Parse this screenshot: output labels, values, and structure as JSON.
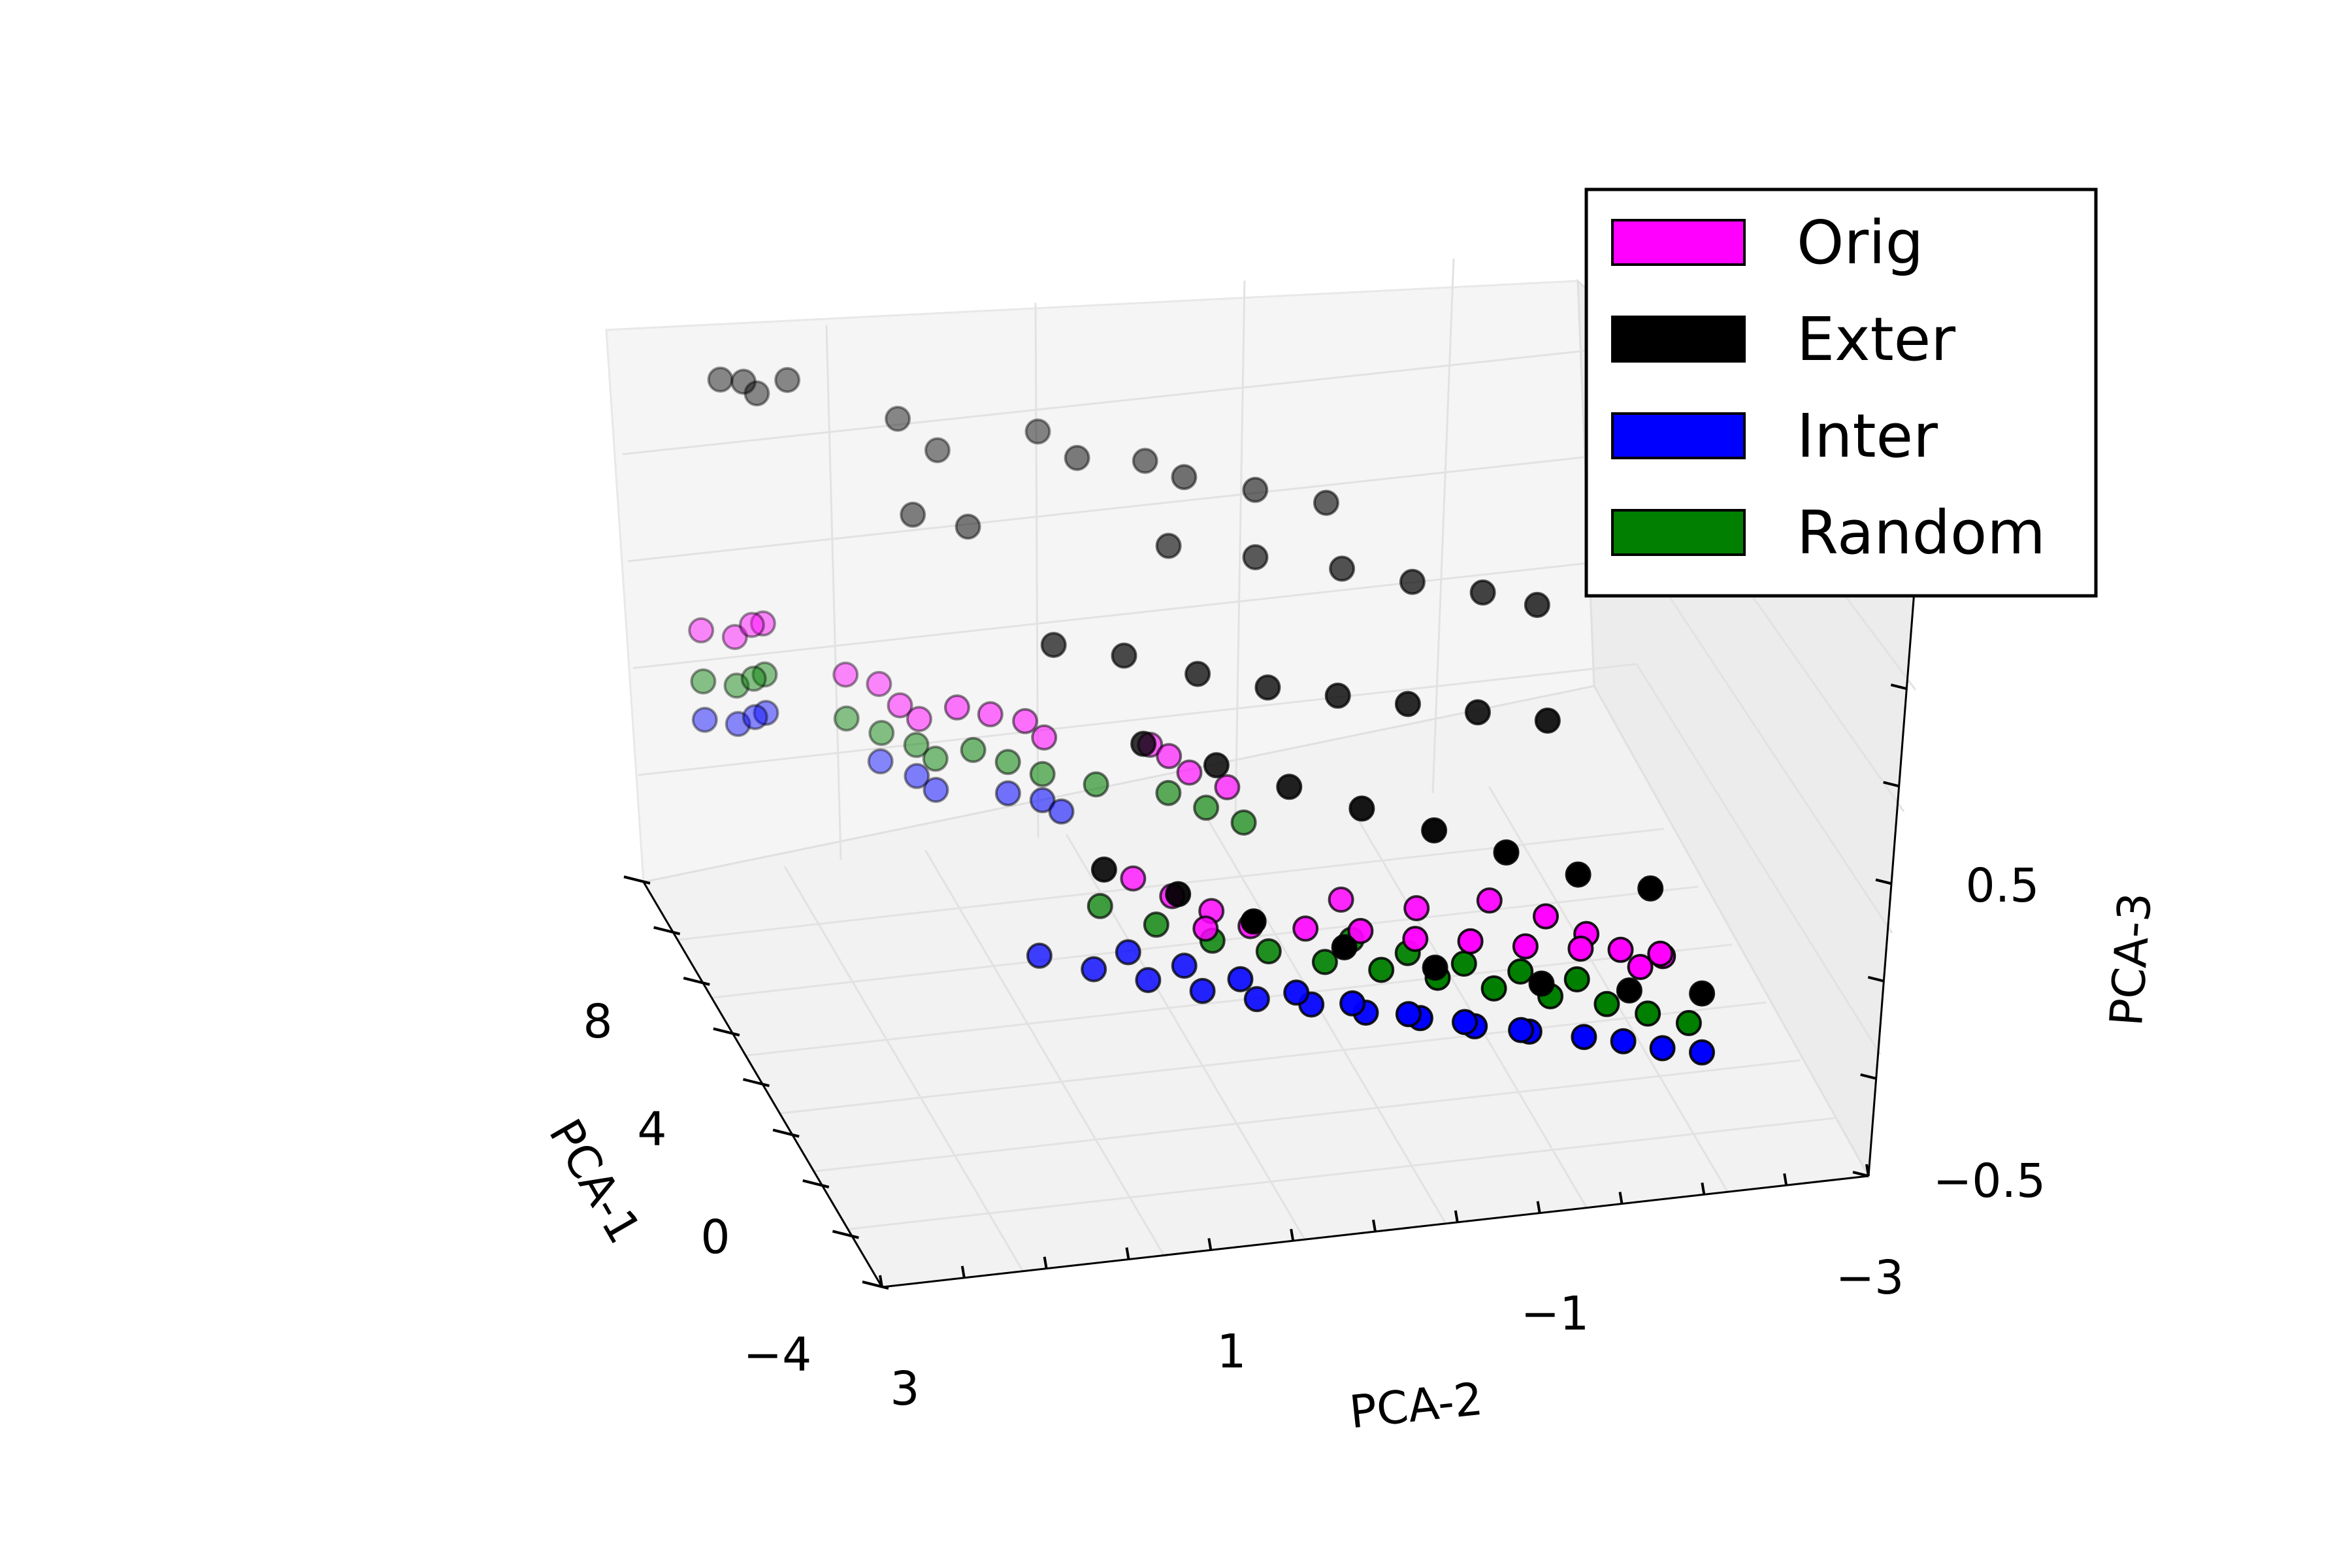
{
  "chart_data": {
    "type": "scatter",
    "projection": "3d",
    "grid": true,
    "legend_position": "top-right",
    "axes": {
      "x": {
        "label": "PCA-1",
        "ticks": [
          8,
          4,
          0,
          -4
        ],
        "tick_labels": [
          "8",
          "4",
          "0",
          "−4"
        ]
      },
      "y": {
        "label": "PCA-2",
        "ticks": [
          3,
          1,
          -1,
          -3
        ],
        "tick_labels": [
          "3",
          "1",
          "−1",
          "−3"
        ]
      },
      "z": {
        "label": "PCA-3",
        "ticks": [
          0.5,
          -0.5
        ],
        "tick_labels": [
          "0.5",
          "−0.5"
        ]
      }
    },
    "series": [
      {
        "name": "Orig",
        "color": "#ff00ff",
        "points": [
          [
            9.6,
            2.8,
            0.25
          ],
          [
            9.5,
            2.6,
            0.22
          ],
          [
            9.7,
            2.4,
            0.24
          ],
          [
            9.4,
            2.5,
            0.27
          ],
          [
            8.6,
            2.0,
            0.12
          ],
          [
            8.5,
            1.8,
            0.08
          ],
          [
            8.2,
            1.7,
            0.02
          ],
          [
            8.0,
            1.6,
            -0.02
          ],
          [
            7.6,
            1.4,
            0.05
          ],
          [
            7.5,
            1.2,
            0.02
          ],
          [
            7.3,
            1.0,
            0.0
          ],
          [
            7.1,
            0.9,
            -0.05
          ],
          [
            6.4,
            0.3,
            -0.05
          ],
          [
            6.2,
            0.2,
            -0.08
          ],
          [
            5.9,
            0.1,
            -0.12
          ],
          [
            5.5,
            -0.1,
            -0.15
          ],
          [
            4.5,
            0.6,
            -0.35
          ],
          [
            4.0,
            0.4,
            -0.38
          ],
          [
            3.5,
            0.2,
            -0.4
          ],
          [
            3.0,
            0.0,
            -0.42
          ],
          [
            2.5,
            -0.3,
            -0.4
          ],
          [
            2.0,
            -0.6,
            -0.38
          ],
          [
            1.5,
            -0.9,
            -0.38
          ],
          [
            1.0,
            -1.2,
            -0.36
          ],
          [
            0.5,
            -1.5,
            -0.35
          ],
          [
            0.0,
            -1.8,
            -0.33
          ],
          [
            -0.5,
            -2.0,
            -0.3
          ],
          [
            -1.0,
            -2.2,
            -0.28
          ],
          [
            1.8,
            -1.4,
            -0.3
          ],
          [
            1.2,
            -1.7,
            -0.32
          ],
          [
            0.6,
            -1.9,
            -0.34
          ],
          [
            2.4,
            -1.0,
            -0.36
          ],
          [
            3.2,
            -0.6,
            -0.38
          ],
          [
            -0.3,
            -2.3,
            -0.36
          ],
          [
            -0.8,
            -2.1,
            -0.34
          ],
          [
            2.9,
            0.3,
            -0.4
          ]
        ]
      },
      {
        "name": "Exter",
        "color": "#000000",
        "points": [
          [
            9.8,
            2.6,
            1.2
          ],
          [
            9.6,
            2.4,
            1.15
          ],
          [
            9.7,
            2.2,
            1.18
          ],
          [
            9.4,
            2.5,
            1.22
          ],
          [
            9.0,
            1.6,
            1.05
          ],
          [
            8.6,
            1.4,
            0.95
          ],
          [
            8.4,
            0.8,
            1.0
          ],
          [
            8.0,
            0.6,
            0.92
          ],
          [
            7.8,
            0.2,
            0.9
          ],
          [
            7.4,
            0.0,
            0.86
          ],
          [
            7.0,
            -0.4,
            0.82
          ],
          [
            6.6,
            -0.8,
            0.78
          ],
          [
            8.2,
            1.6,
            0.75
          ],
          [
            7.8,
            1.3,
            0.72
          ],
          [
            6.4,
            0.2,
            0.7
          ],
          [
            6.0,
            -0.3,
            0.66
          ],
          [
            5.6,
            -0.8,
            0.62
          ],
          [
            5.2,
            -1.2,
            0.58
          ],
          [
            4.8,
            -1.6,
            0.55
          ],
          [
            4.4,
            -1.9,
            0.52
          ],
          [
            5.6,
            1.0,
            0.45
          ],
          [
            5.2,
            0.6,
            0.42
          ],
          [
            4.6,
            0.2,
            0.38
          ],
          [
            4.2,
            -0.2,
            0.34
          ],
          [
            3.8,
            -0.6,
            0.32
          ],
          [
            3.4,
            -1.0,
            0.3
          ],
          [
            3.0,
            -1.4,
            0.28
          ],
          [
            2.6,
            -1.8,
            0.26
          ],
          [
            4.0,
            0.6,
            0.2
          ],
          [
            3.4,
            0.2,
            0.15
          ],
          [
            2.8,
            -0.2,
            0.1
          ],
          [
            2.2,
            -0.6,
            0.05
          ],
          [
            1.6,
            -1.0,
            0.0
          ],
          [
            1.0,
            -1.4,
            -0.05
          ],
          [
            0.4,
            -1.8,
            -0.1
          ],
          [
            -0.2,
            -2.2,
            -0.12
          ],
          [
            2.5,
            1.0,
            -0.1
          ],
          [
            1.8,
            0.6,
            -0.15
          ],
          [
            1.0,
            0.2,
            -0.2
          ],
          [
            0.2,
            -0.3,
            -0.25
          ],
          [
            -0.6,
            -0.8,
            -0.28
          ],
          [
            -1.4,
            -1.4,
            -0.3
          ],
          [
            -2.0,
            -1.9,
            -0.3
          ],
          [
            -2.6,
            -2.3,
            -0.28
          ]
        ]
      },
      {
        "name": "Inter",
        "color": "#0000ff",
        "points": [
          [
            9.6,
            2.8,
            -0.1
          ],
          [
            9.5,
            2.6,
            -0.12
          ],
          [
            9.7,
            2.4,
            -0.11
          ],
          [
            9.4,
            2.5,
            -0.09
          ],
          [
            8.5,
            1.8,
            -0.22
          ],
          [
            8.2,
            1.6,
            -0.26
          ],
          [
            8.0,
            1.5,
            -0.3
          ],
          [
            7.4,
            1.1,
            -0.28
          ],
          [
            7.2,
            0.9,
            -0.3
          ],
          [
            7.0,
            0.8,
            -0.33
          ],
          [
            4.5,
            1.2,
            -0.6
          ],
          [
            4.0,
            0.9,
            -0.62
          ],
          [
            3.5,
            0.6,
            -0.63
          ],
          [
            3.0,
            0.3,
            -0.64
          ],
          [
            2.5,
            0.0,
            -0.64
          ],
          [
            2.0,
            -0.3,
            -0.63
          ],
          [
            1.5,
            -0.6,
            -0.63
          ],
          [
            1.0,
            -0.9,
            -0.62
          ],
          [
            0.5,
            -1.2,
            -0.62
          ],
          [
            0.0,
            -1.5,
            -0.61
          ],
          [
            -0.5,
            -1.8,
            -0.6
          ],
          [
            -1.0,
            -2.0,
            -0.58
          ],
          [
            -1.5,
            -2.2,
            -0.57
          ],
          [
            -2.0,
            -2.4,
            -0.55
          ],
          [
            3.8,
            0.7,
            -0.55
          ],
          [
            3.2,
            0.4,
            -0.56
          ],
          [
            2.6,
            0.1,
            -0.57
          ],
          [
            2.0,
            -0.2,
            -0.58
          ],
          [
            1.4,
            -0.5,
            -0.58
          ],
          [
            0.8,
            -0.8,
            -0.58
          ],
          [
            0.2,
            -1.1,
            -0.57
          ],
          [
            -0.4,
            -1.4,
            -0.56
          ]
        ]
      },
      {
        "name": "Random",
        "color": "#007f00",
        "points": [
          [
            9.6,
            2.8,
            0.05
          ],
          [
            9.5,
            2.6,
            0.03
          ],
          [
            9.7,
            2.4,
            0.04
          ],
          [
            9.4,
            2.5,
            0.06
          ],
          [
            8.6,
            2.0,
            -0.05
          ],
          [
            8.4,
            1.8,
            -0.1
          ],
          [
            8.2,
            1.6,
            -0.14
          ],
          [
            8.0,
            1.5,
            -0.18
          ],
          [
            7.6,
            1.3,
            -0.12
          ],
          [
            7.4,
            1.1,
            -0.16
          ],
          [
            7.2,
            0.9,
            -0.2
          ],
          [
            6.8,
            0.6,
            -0.22
          ],
          [
            6.2,
            0.2,
            -0.22
          ],
          [
            5.8,
            0.0,
            -0.25
          ],
          [
            5.4,
            -0.2,
            -0.28
          ],
          [
            4.6,
            0.8,
            -0.45
          ],
          [
            4.0,
            0.5,
            -0.48
          ],
          [
            3.4,
            0.2,
            -0.5
          ],
          [
            2.8,
            -0.1,
            -0.5
          ],
          [
            2.2,
            -0.4,
            -0.5
          ],
          [
            1.6,
            -0.7,
            -0.49
          ],
          [
            1.0,
            -1.0,
            -0.48
          ],
          [
            0.4,
            -1.3,
            -0.48
          ],
          [
            -0.2,
            -1.6,
            -0.47
          ],
          [
            -0.8,
            -1.9,
            -0.46
          ],
          [
            -1.4,
            -2.1,
            -0.45
          ],
          [
            -2.0,
            -2.3,
            -0.44
          ],
          [
            2.5,
            -0.6,
            -0.46
          ],
          [
            1.9,
            -0.9,
            -0.47
          ],
          [
            1.3,
            -1.2,
            -0.47
          ],
          [
            0.7,
            -1.5,
            -0.46
          ],
          [
            0.1,
            -1.8,
            -0.45
          ]
        ]
      }
    ]
  }
}
